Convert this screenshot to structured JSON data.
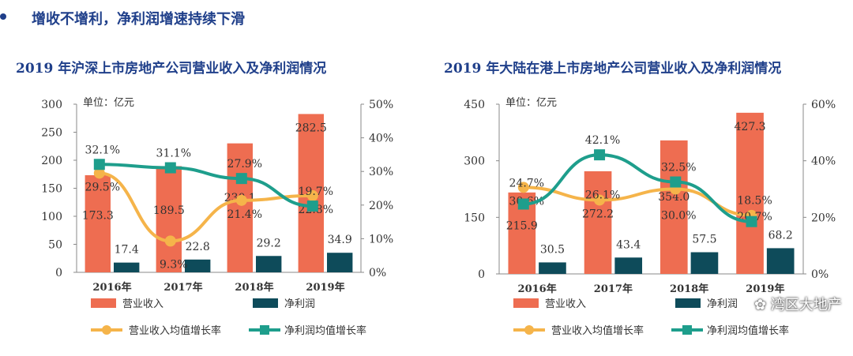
{
  "heading": "增收不增利，净利润增速持续下滑",
  "watermark": "湾区大地产",
  "colors": {
    "revenue": "#ee6d51",
    "profit": "#0e4b5a",
    "revenue_growth": "#f5b44a",
    "profit_growth": "#1e9e8c",
    "heading": "#1f3f8a"
  },
  "chart_data": [
    {
      "type": "bar+line",
      "title": "2019 年沪深上市房地产公司营业收入及净利润情况",
      "unit": "单位：亿元",
      "categories": [
        "2016年",
        "2017年",
        "2018年",
        "2019年"
      ],
      "y_left": {
        "range": [
          0,
          300
        ],
        "ticks": [
          "0",
          "50",
          "100",
          "150",
          "200",
          "250",
          "300"
        ]
      },
      "y_right": {
        "range": [
          0,
          50
        ],
        "ticks": [
          "0%",
          "10%",
          "20%",
          "30%",
          "40%",
          "50%"
        ]
      },
      "series": [
        {
          "name": "营业收入",
          "kind": "bar",
          "axis": "left",
          "values": [
            173.3,
            189.5,
            230.1,
            282.5
          ]
        },
        {
          "name": "净利润",
          "kind": "bar",
          "axis": "left",
          "values": [
            17.4,
            22.8,
            29.2,
            34.9
          ]
        },
        {
          "name": "营业收入均值增长率",
          "kind": "line",
          "axis": "right",
          "values": [
            29.5,
            9.3,
            21.4,
            22.8
          ],
          "labels": [
            "29.5%",
            "9.3%",
            "21.4%",
            "22.8%"
          ]
        },
        {
          "name": "净利润均值增长率",
          "kind": "line",
          "axis": "right",
          "values": [
            32.1,
            31.1,
            27.9,
            19.7
          ],
          "labels": [
            "32.1%",
            "31.1%",
            "27.9%",
            "19.7%"
          ]
        }
      ]
    },
    {
      "type": "bar+line",
      "title": "2019 年大陆在港上市房地产公司营业收入及净利润情况",
      "unit": "单位：亿元",
      "categories": [
        "2016年",
        "2017年",
        "2018年",
        "2019年"
      ],
      "y_left": {
        "range": [
          0,
          450
        ],
        "ticks": [
          "0",
          "150",
          "300",
          "450"
        ]
      },
      "y_right": {
        "range": [
          0,
          60
        ],
        "ticks": [
          "0%",
          "20%",
          "40%",
          "60%"
        ]
      },
      "series": [
        {
          "name": "营业收入",
          "kind": "bar",
          "axis": "left",
          "values": [
            215.9,
            272.2,
            354.0,
            427.3
          ]
        },
        {
          "name": "净利润",
          "kind": "bar",
          "axis": "left",
          "values": [
            30.5,
            43.4,
            57.5,
            68.2
          ]
        },
        {
          "name": "营业收入均值增长率",
          "kind": "line",
          "axis": "right",
          "values": [
            30.6,
            26.1,
            30.0,
            20.7
          ],
          "labels": [
            "30.6%",
            "26.1%",
            "30.0%",
            "20.7%"
          ]
        },
        {
          "name": "净利润均值增长率",
          "kind": "line",
          "axis": "right",
          "values": [
            24.7,
            42.1,
            32.5,
            18.5
          ],
          "labels": [
            "24.7%",
            "42.1%",
            "32.5%",
            "18.5%"
          ]
        }
      ]
    }
  ]
}
